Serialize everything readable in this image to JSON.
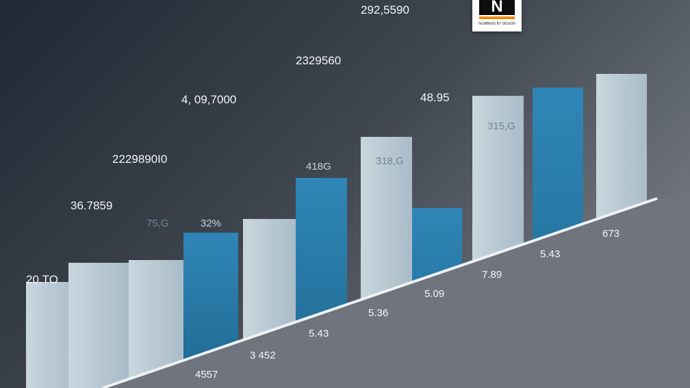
{
  "chart_data": {
    "type": "bar",
    "top_labels": [
      "20.TO",
      "36.7859",
      "2229890I0",
      "4, 09,7000",
      "2329560",
      "292,5590",
      "48.95"
    ],
    "inner_labels": [
      "75,G",
      "32%",
      "418G",
      "318,G",
      "315,G"
    ],
    "bottom_labels": [
      "4557",
      "3 452",
      "5.43",
      "5.36",
      "5.09",
      "7.89",
      "5.43",
      "673"
    ],
    "bars": [
      {
        "color": "light",
        "top_value": 0.82
      },
      {
        "color": "light",
        "top_value": 0.89
      },
      {
        "color": "light",
        "top_value": 0.9
      },
      {
        "color": "blue",
        "top_value": 1.0
      },
      {
        "color": "light",
        "top_value": 1.05
      },
      {
        "color": "blue",
        "top_value": 1.2
      },
      {
        "color": "light",
        "top_value": 1.35
      },
      {
        "color": "blue",
        "top_value": 1.09
      },
      {
        "color": "light",
        "top_value": 1.5
      },
      {
        "color": "blue",
        "top_value": 1.53
      },
      {
        "color": "light",
        "top_value": 1.58
      }
    ],
    "colors": {
      "light": "#b8c9d3",
      "blue": "#2a79a6"
    },
    "logo_text": "N",
    "logo_subtext": "NUMBERS BY DESIGN"
  }
}
